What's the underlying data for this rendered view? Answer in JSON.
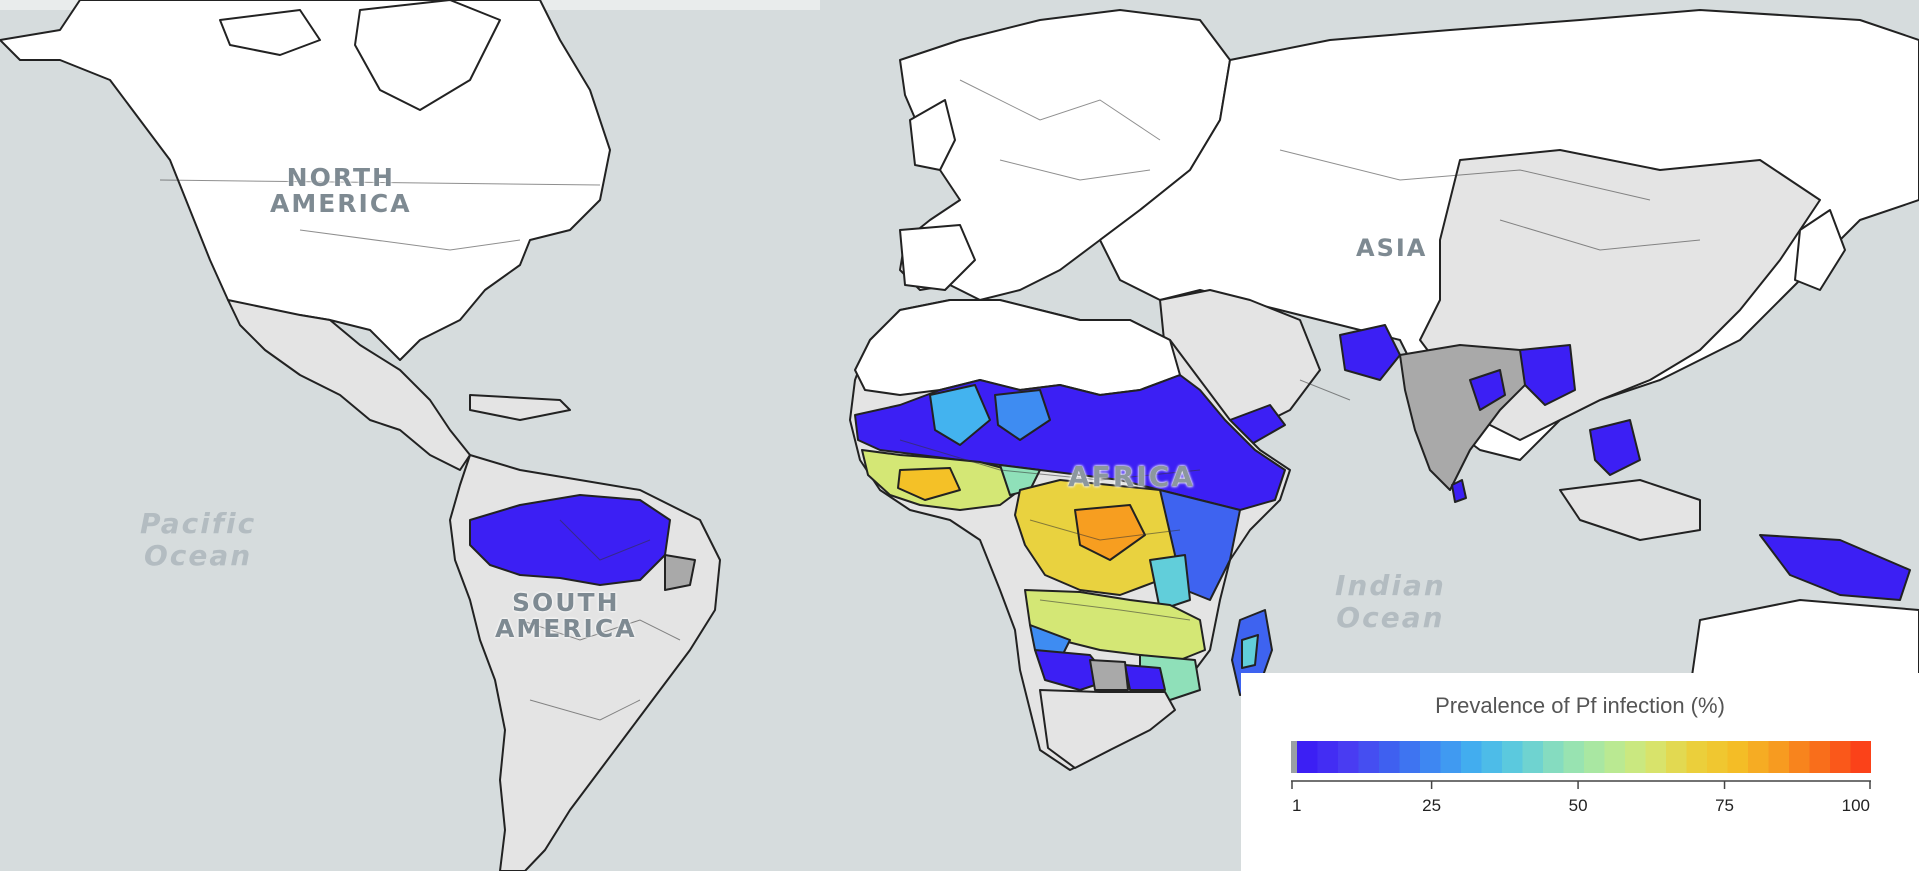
{
  "labels": {
    "north_america": [
      "NORTH",
      "AMERICA"
    ],
    "south_america": [
      "SOUTH",
      "AMERICA"
    ],
    "africa": "AFRICA",
    "asia": "ASIA",
    "pacific_ocean": [
      "Pacific",
      "Ocean"
    ],
    "indian_ocean": [
      "Indian",
      "Ocean"
    ]
  },
  "legend": {
    "title": "Prevalence of Pf infection (%)",
    "min": 1,
    "max": 100,
    "ticks": [
      1,
      25,
      50,
      75,
      100
    ],
    "no_data_color": "#9aa0a4"
  },
  "colors": {
    "ocean": "#d6dcdd",
    "land_no_risk": "#ffffff",
    "land_unstable": "#e4e4e4",
    "land_low": "#a9a9a9",
    "border": "#222222"
  },
  "colorscale": [
    "#3c1ff4",
    "#4a3df2",
    "#3e63f0",
    "#3e8cf2",
    "#43b3ef",
    "#61ceda",
    "#8fe0b9",
    "#b2ea9a",
    "#d4e775",
    "#e9d23f",
    "#f4c127",
    "#f79e20",
    "#f9701b",
    "#fb4219"
  ]
}
